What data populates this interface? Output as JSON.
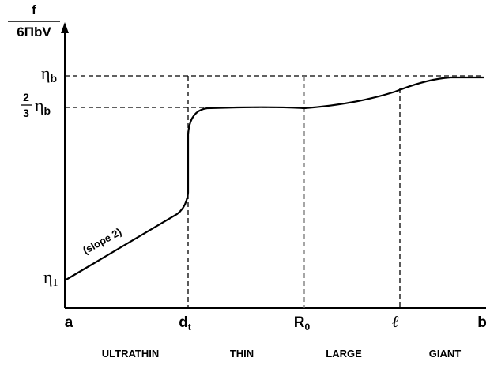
{
  "y_axis": {
    "label": {
      "numerator": "f",
      "denominator": "6ΠbV"
    },
    "levels": [
      {
        "symbol": "η",
        "subscript": "b"
      },
      {
        "fraction": {
          "numerator": "2",
          "denominator": "3"
        },
        "symbol": "η",
        "subscript": "b"
      },
      {
        "symbol": "η",
        "subscript": "1"
      }
    ]
  },
  "x_axis": {
    "points": [
      {
        "symbol": "a"
      },
      {
        "symbol": "d",
        "subscript": "t"
      },
      {
        "symbol": "R",
        "subscript": "0"
      },
      {
        "symbol": "ℓ"
      },
      {
        "symbol": "b"
      }
    ]
  },
  "regions": [
    "ULTRATHIN",
    "THIN",
    "LARGE",
    "GIANT"
  ],
  "annotation": "(slope 2)"
}
